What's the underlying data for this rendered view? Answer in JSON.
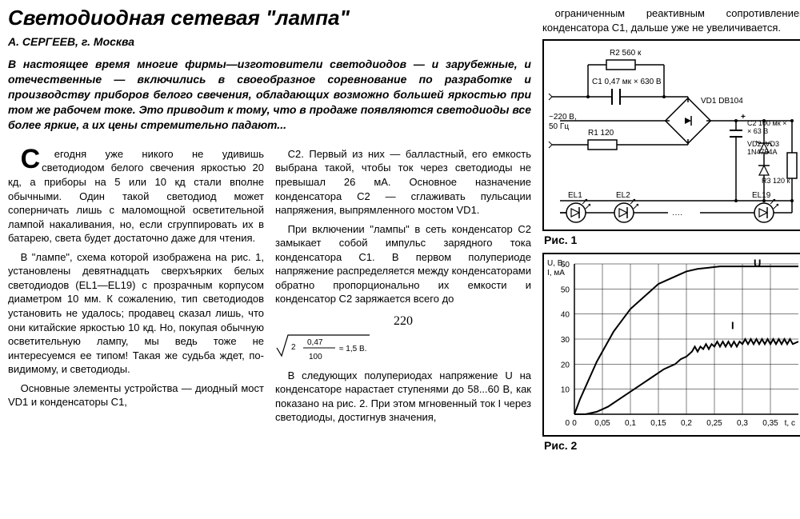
{
  "article": {
    "title": "Светодиодная сетевая \"лампа\"",
    "author": "А. СЕРГЕЕВ, г. Москва",
    "lead": "В настоящее время многие фирмы—изготовители светодиодов — и зарубежные, и отечественные — включились в своеобразное соревнование по разработке и производству приборов белого свечения, обладающих возможно большей яркостью при том же рабочем токе. Это приводит к тому, что в продаже появляются светодиоды все более яркие, а их цены стремительно падают...",
    "col1": [
      "Сегодня уже никого не удивишь светодиодом белого свечения яркостью 20 кд, а приборы на 5 или 10 кд стали вполне обычными. Один такой светодиод может соперничать лишь с маломощной осветительной лампой накаливания, но, если сгруппировать их в батарею, света будет достаточно даже для чтения.",
      "В \"лампе\", схема которой изображена на рис. 1, установлены девятнадцать сверхъярких белых светодиодов (EL1—EL19) с прозрачным корпусом диаметром 10 мм. К сожалению, тип светодиодов установить не удалось; продавец сказал лишь, что они китайские яркостью 10 кд. Но, покупая обычную осветительную лампу, мы ведь тоже не интересуемся ее типом! Такая же судьба ждет, по-видимому, и светодиоды.",
      "Основные элементы устройства — диодный мост VD1 и конденсаторы C1,"
    ],
    "col2": [
      "C2. Первый из них — балластный, его емкость выбрана такой, чтобы ток через светодиоды не превышал 26 мА. Основное назначение конденсатора C2 — сглаживать пульсации напряжения, выпрямленного мостом VD1.",
      "При включении \"лампы\" в сеть конденсатор C2 замыкает собой импульс зарядного тока конденсатора C1. В первом полупериоде напряжение распределяется между конденсаторами обратно пропорционально их емкости и конденсатор C2 заряжается всего до",
      "В следующих полупериодах напряжение U на конденсаторе нарастает ступенями до 58...60 В, как показано на рис. 2. При этом мгновенный ток I через светодиоды, достигнув значения,"
    ],
    "formula_prefix": "220",
    "formula_num": "0,47",
    "formula_den": "100",
    "formula_result": "≈ 1,5 В.",
    "col3_top": "ограниченным реактивным сопротивлением конденсатора C1, дальше уже не увеличивается."
  },
  "fig1": {
    "label": "Рис. 1",
    "components": {
      "R2": "R2 560 к",
      "C1": "C1 0,47 мк × 630 В",
      "mains": "~220 В,\n50 Гц",
      "R1": "R1 120",
      "VD1": "VD1 DB104",
      "C2": "C2 100 мк ×\n× 63 В",
      "VD23": "VD2, VD3\n1N4754A",
      "R3": "R3 120 к",
      "EL1": "EL1",
      "EL2": "EL2",
      "EL19": "EL19"
    },
    "stroke": "#000000",
    "fill": "#ffffff"
  },
  "fig2": {
    "label": "Рис. 2",
    "ylabel": "U, В;\nI, мА",
    "xlabel": "t, с",
    "curve_U_label": "U",
    "curve_I_label": "I",
    "xlim": [
      0,
      0.4
    ],
    "ylim": [
      0,
      60
    ],
    "xticks": [
      0,
      0.05,
      0.1,
      0.15,
      0.2,
      0.25,
      0.3,
      0.35
    ],
    "xtick_labels": [
      "0",
      "0,05",
      "0,1",
      "0,15",
      "0,2",
      "0,25",
      "0,3",
      "0,35"
    ],
    "yticks": [
      0,
      10,
      20,
      30,
      40,
      50,
      60
    ],
    "grid_color": "#000000",
    "grid_width": 0.5,
    "curve_color": "#000000",
    "curve_width": 2,
    "background": "#ffffff",
    "curve_U": [
      [
        0,
        0
      ],
      [
        0.01,
        6
      ],
      [
        0.02,
        11
      ],
      [
        0.03,
        16
      ],
      [
        0.04,
        21
      ],
      [
        0.05,
        25
      ],
      [
        0.06,
        29
      ],
      [
        0.07,
        33
      ],
      [
        0.08,
        36
      ],
      [
        0.09,
        39
      ],
      [
        0.1,
        42
      ],
      [
        0.11,
        44
      ],
      [
        0.12,
        46
      ],
      [
        0.13,
        48
      ],
      [
        0.14,
        50
      ],
      [
        0.15,
        52
      ],
      [
        0.16,
        53
      ],
      [
        0.17,
        54
      ],
      [
        0.18,
        55
      ],
      [
        0.19,
        56
      ],
      [
        0.2,
        57
      ],
      [
        0.22,
        58
      ],
      [
        0.24,
        58.5
      ],
      [
        0.26,
        59
      ],
      [
        0.28,
        59
      ],
      [
        0.3,
        59
      ],
      [
        0.32,
        59
      ],
      [
        0.34,
        59
      ],
      [
        0.36,
        59
      ],
      [
        0.38,
        59
      ],
      [
        0.4,
        59
      ]
    ],
    "curve_I": [
      [
        0,
        0
      ],
      [
        0.02,
        0
      ],
      [
        0.04,
        1
      ],
      [
        0.06,
        3
      ],
      [
        0.08,
        6
      ],
      [
        0.1,
        9
      ],
      [
        0.12,
        12
      ],
      [
        0.14,
        15
      ],
      [
        0.16,
        18
      ],
      [
        0.18,
        20
      ],
      [
        0.19,
        22
      ],
      [
        0.2,
        23
      ],
      [
        0.21,
        25
      ],
      [
        0.215,
        27
      ],
      [
        0.22,
        25
      ],
      [
        0.225,
        27
      ],
      [
        0.23,
        26
      ],
      [
        0.235,
        28
      ],
      [
        0.24,
        26
      ],
      [
        0.245,
        28
      ],
      [
        0.25,
        27
      ],
      [
        0.255,
        29
      ],
      [
        0.26,
        27
      ],
      [
        0.265,
        29
      ],
      [
        0.27,
        27
      ],
      [
        0.275,
        29
      ],
      [
        0.28,
        27
      ],
      [
        0.285,
        29
      ],
      [
        0.29,
        27
      ],
      [
        0.295,
        29
      ],
      [
        0.3,
        28
      ],
      [
        0.305,
        30
      ],
      [
        0.31,
        28
      ],
      [
        0.315,
        30
      ],
      [
        0.32,
        28
      ],
      [
        0.325,
        30
      ],
      [
        0.33,
        28
      ],
      [
        0.335,
        30
      ],
      [
        0.34,
        28
      ],
      [
        0.345,
        30
      ],
      [
        0.35,
        28
      ],
      [
        0.355,
        30
      ],
      [
        0.36,
        28
      ],
      [
        0.365,
        30
      ],
      [
        0.37,
        28
      ],
      [
        0.375,
        30
      ],
      [
        0.38,
        28
      ],
      [
        0.385,
        30
      ],
      [
        0.39,
        28
      ],
      [
        0.4,
        29
      ]
    ]
  }
}
